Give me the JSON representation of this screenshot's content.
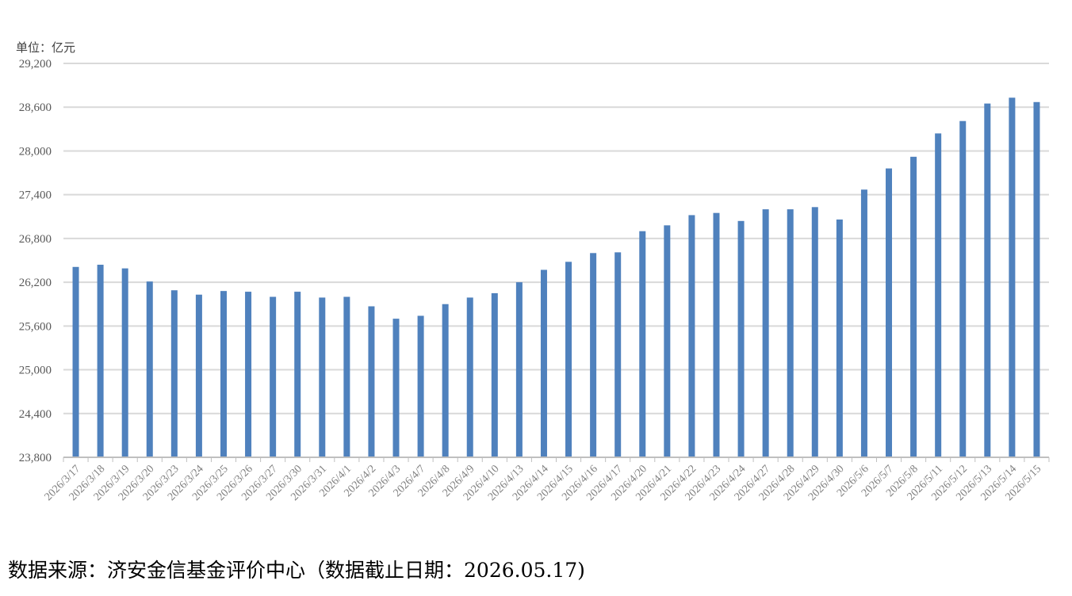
{
  "unit_label": "单位：亿元",
  "source_line": "数据来源：济安金信基金评价中心（数据截止日期：2026.05.17)",
  "colors": {
    "bar": "#4f81bd",
    "grid": "#d9d9d9",
    "axis": "#bfbfbf"
  },
  "chart_data": {
    "type": "bar",
    "title": "",
    "xlabel": "",
    "ylabel": "",
    "ylim": [
      23800,
      29200
    ],
    "yticks": [
      23800,
      24400,
      25000,
      25600,
      26200,
      26800,
      27400,
      28000,
      28600,
      29200
    ],
    "ytick_labels": [
      "23,800",
      "24,400",
      "25,000",
      "25,600",
      "26,200",
      "26,800",
      "27,400",
      "28,000",
      "28,600",
      "29,200"
    ],
    "grid": true,
    "categories": [
      "2026/3/17",
      "2026/3/18",
      "2026/3/19",
      "2026/3/20",
      "2026/3/23",
      "2026/3/24",
      "2026/3/25",
      "2026/3/26",
      "2026/3/27",
      "2026/3/30",
      "2026/3/31",
      "2026/4/1",
      "2026/4/2",
      "2026/4/3",
      "2026/4/7",
      "2026/4/8",
      "2026/4/9",
      "2026/4/10",
      "2026/4/13",
      "2026/4/14",
      "2026/4/15",
      "2026/4/16",
      "2026/4/17",
      "2026/4/20",
      "2026/4/21",
      "2026/4/22",
      "2026/4/23",
      "2026/4/24",
      "2026/4/27",
      "2026/4/28",
      "2026/4/29",
      "2026/4/30",
      "2026/5/6",
      "2026/5/7",
      "2026/5/8",
      "2026/5/11",
      "2026/5/12",
      "2026/5/13",
      "2026/5/14",
      "2026/5/15"
    ],
    "values": [
      26410,
      26440,
      26390,
      26210,
      26090,
      26030,
      26080,
      26070,
      26000,
      26070,
      25990,
      26000,
      25870,
      25700,
      25740,
      25900,
      25990,
      26050,
      26200,
      26370,
      26480,
      26600,
      26610,
      26900,
      26980,
      27120,
      27150,
      27040,
      27200,
      27200,
      27230,
      27060,
      27470,
      27760,
      27920,
      28240,
      28410,
      28650,
      28730,
      28670
    ]
  }
}
